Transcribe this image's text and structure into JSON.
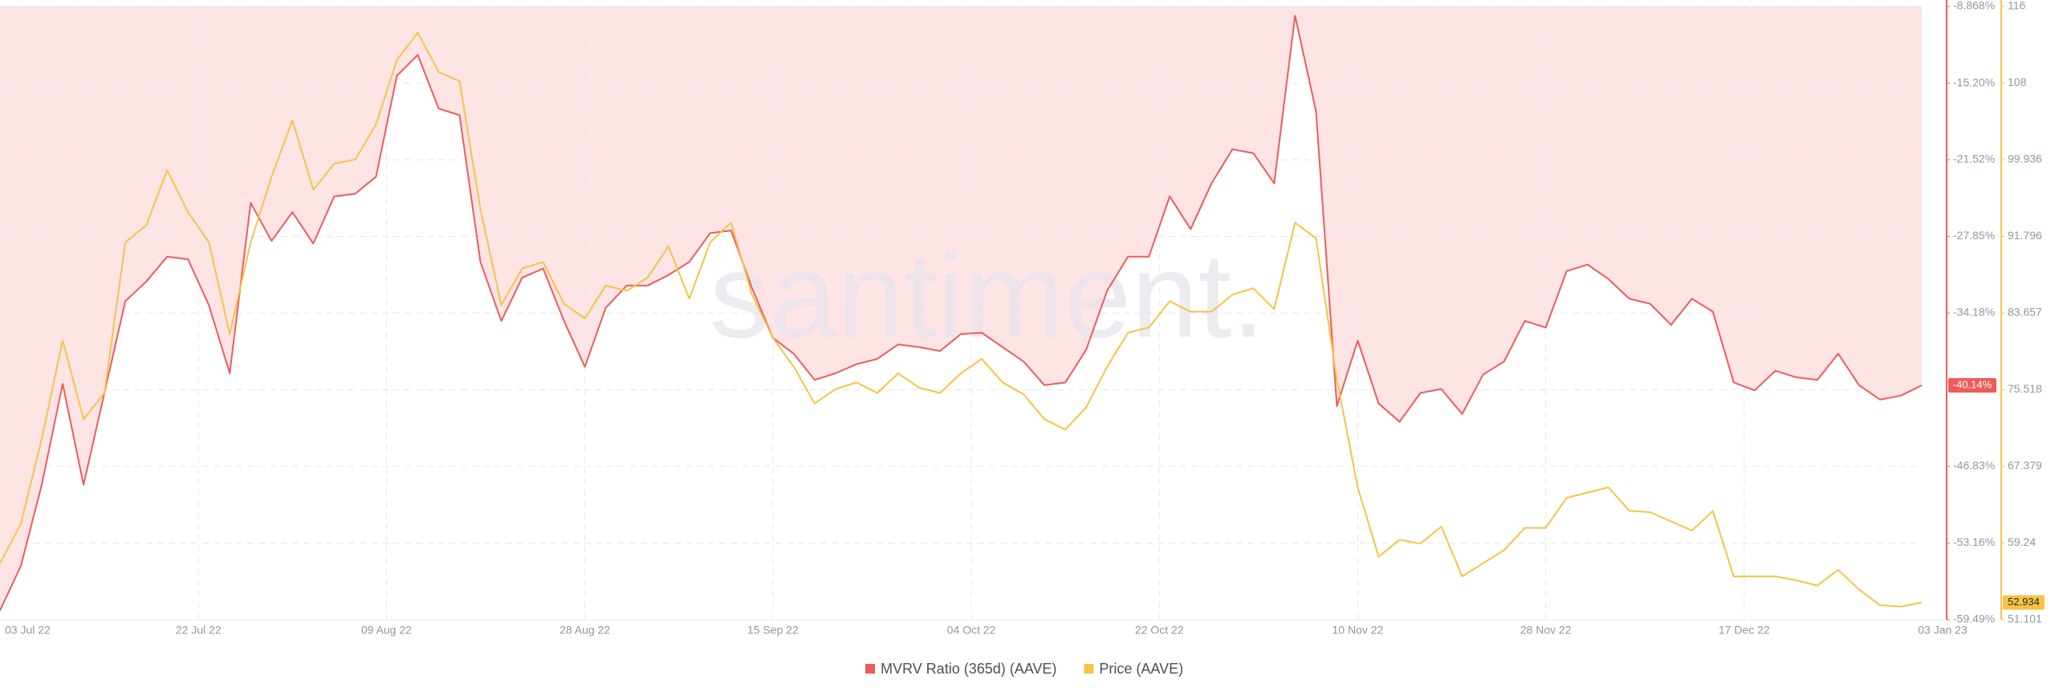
{
  "chart_data": {
    "type": "line",
    "watermark": "santiment.",
    "x": [
      "2022-07-03",
      "2022-07-05",
      "2022-07-07",
      "2022-07-09",
      "2022-07-11",
      "2022-07-13",
      "2022-07-15",
      "2022-07-17",
      "2022-07-19",
      "2022-07-21",
      "2022-07-23",
      "2022-07-25",
      "2022-07-27",
      "2022-07-29",
      "2022-07-31",
      "2022-08-02",
      "2022-08-04",
      "2022-08-06",
      "2022-08-08",
      "2022-08-10",
      "2022-08-12",
      "2022-08-14",
      "2022-08-16",
      "2022-08-18",
      "2022-08-20",
      "2022-08-22",
      "2022-08-24",
      "2022-08-26",
      "2022-08-28",
      "2022-08-30",
      "2022-09-01",
      "2022-09-03",
      "2022-09-05",
      "2022-09-07",
      "2022-09-09",
      "2022-09-11",
      "2022-09-13",
      "2022-09-15",
      "2022-09-17",
      "2022-09-19",
      "2022-09-21",
      "2022-09-23",
      "2022-09-25",
      "2022-09-27",
      "2022-09-29",
      "2022-10-01",
      "2022-10-03",
      "2022-10-05",
      "2022-10-07",
      "2022-10-09",
      "2022-10-11",
      "2022-10-13",
      "2022-10-15",
      "2022-10-17",
      "2022-10-19",
      "2022-10-21",
      "2022-10-23",
      "2022-10-25",
      "2022-10-27",
      "2022-10-29",
      "2022-10-31",
      "2022-11-02",
      "2022-11-04",
      "2022-11-06",
      "2022-11-08",
      "2022-11-10",
      "2022-11-12",
      "2022-11-14",
      "2022-11-16",
      "2022-11-18",
      "2022-11-20",
      "2022-11-22",
      "2022-11-24",
      "2022-11-26",
      "2022-11-28",
      "2022-11-30",
      "2022-12-02",
      "2022-12-04",
      "2022-12-06",
      "2022-12-08",
      "2022-12-10",
      "2022-12-12",
      "2022-12-14",
      "2022-12-16",
      "2022-12-18",
      "2022-12-20",
      "2022-12-22",
      "2022-12-24",
      "2022-12-26",
      "2022-12-28",
      "2022-12-30",
      "2023-01-01",
      "2023-01-03"
    ],
    "xlim": [
      "2022-07-03",
      "2023-01-03"
    ],
    "xticks": [
      {
        "value": "2022-07-03",
        "label": "03 Jul 22"
      },
      {
        "value": "2022-07-22",
        "label": "22 Jul 22"
      },
      {
        "value": "2022-08-09",
        "label": "09 Aug 22"
      },
      {
        "value": "2022-08-28",
        "label": "28 Aug 22"
      },
      {
        "value": "2022-09-15",
        "label": "15 Sep 22"
      },
      {
        "value": "2022-10-04",
        "label": "04 Oct 22"
      },
      {
        "value": "2022-10-22",
        "label": "22 Oct 22"
      },
      {
        "value": "2022-11-10",
        "label": "10 Nov 22"
      },
      {
        "value": "2022-11-28",
        "label": "28 Nov 22"
      },
      {
        "value": "2022-12-17",
        "label": "17 Dec 22"
      },
      {
        "value": "2023-01-03",
        "label": "03 Jan 23"
      }
    ],
    "ylim": [
      -59.49,
      -8.868
    ],
    "yticks": [
      {
        "value": -8.868,
        "label": "-8.868%"
      },
      {
        "value": -15.2,
        "label": "-15.20%"
      },
      {
        "value": -21.52,
        "label": "-21.52%"
      },
      {
        "value": -27.85,
        "label": "-27.85%"
      },
      {
        "value": -34.18,
        "label": "-34.18%"
      },
      {
        "value": -46.83,
        "label": "-46.83%"
      },
      {
        "value": -53.16,
        "label": "-53.16%"
      },
      {
        "value": -59.49,
        "label": "-59.49%"
      }
    ],
    "y2lim": [
      51.101,
      116.213
    ],
    "y2ticks": [
      {
        "value": 116.213,
        "label": "116"
      },
      {
        "value": 108.074,
        "label": "108"
      },
      99.936,
      91.796,
      83.657,
      75.518,
      67.379,
      59.24,
      51.101
    ],
    "grid": true,
    "legend": "bottom",
    "series": [
      {
        "name": "MVRV Ratio (365d) (AAVE)",
        "color": "#ef5b5b",
        "fill_above": "#ffe4e6",
        "axis": "y",
        "current": {
          "value": -40.14,
          "label": "-40.14%"
        },
        "values": [
          -58.73,
          -55.05,
          -48.35,
          -40.02,
          -48.35,
          -40.77,
          -33.2,
          -31.58,
          -29.53,
          -29.74,
          -33.53,
          -39.15,
          -25.09,
          -28.23,
          -25.85,
          -28.44,
          -24.55,
          -24.33,
          -22.93,
          -14.6,
          -12.87,
          -17.3,
          -17.84,
          -29.96,
          -34.83,
          -31.26,
          -30.5,
          -34.83,
          -38.61,
          -33.74,
          -31.91,
          -31.91,
          -31.04,
          -29.96,
          -27.58,
          -27.36,
          -32.12,
          -36.23,
          -37.53,
          -39.69,
          -39.15,
          -38.4,
          -37.96,
          -36.77,
          -36.99,
          -37.31,
          -35.91,
          -35.8,
          -36.99,
          -38.18,
          -40.13,
          -39.91,
          -37.21,
          -32.34,
          -29.53,
          -29.53,
          -24.55,
          -27.25,
          -23.47,
          -20.66,
          -20.98,
          -23.47,
          -9.63,
          -17.52,
          -41.86,
          -36.45,
          -41.64,
          -43.15,
          -40.77,
          -40.45,
          -42.51,
          -39.26,
          -38.18,
          -34.83,
          -35.37,
          -30.72,
          -30.18,
          -31.37,
          -32.99,
          -33.42,
          -35.15,
          -32.99,
          -34.07,
          -39.91,
          -40.56,
          -38.94,
          -39.48,
          -39.69,
          -37.53,
          -40.13,
          -41.32,
          -40.99,
          -40.14
        ]
      },
      {
        "name": "Price (AAVE)",
        "color": "#f5c443",
        "axis": "y2",
        "current": {
          "value": 52.934,
          "label": "52.934"
        },
        "values": [
          57.09,
          61.27,
          70.31,
          80.74,
          72.39,
          75.18,
          91.17,
          92.98,
          98.82,
          94.37,
          91.17,
          81.43,
          91.17,
          98.13,
          104.11,
          96.74,
          99.52,
          99.94,
          103.69,
          110.51,
          113.43,
          109.25,
          108.28,
          94.65,
          84.5,
          88.39,
          89.09,
          84.63,
          83.1,
          86.58,
          86.03,
          87.42,
          90.75,
          85.19,
          91.17,
          93.26,
          85.61,
          81.02,
          77.96,
          74.06,
          75.59,
          76.29,
          75.18,
          77.26,
          75.73,
          75.18,
          77.26,
          78.79,
          76.29,
          75.04,
          72.39,
          71.28,
          73.65,
          77.96,
          81.57,
          82.13,
          84.91,
          83.8,
          83.8,
          85.61,
          86.3,
          84.08,
          93.26,
          91.59,
          76.57,
          65.16,
          57.79,
          59.6,
          59.18,
          60.99,
          55.7,
          57.09,
          58.48,
          60.85,
          60.85,
          64.05,
          64.6,
          65.16,
          62.66,
          62.52,
          61.54,
          60.57,
          62.66,
          55.7,
          55.7,
          55.7,
          55.28,
          54.73,
          56.4,
          54.31,
          52.64,
          52.5,
          52.934
        ]
      }
    ]
  }
}
